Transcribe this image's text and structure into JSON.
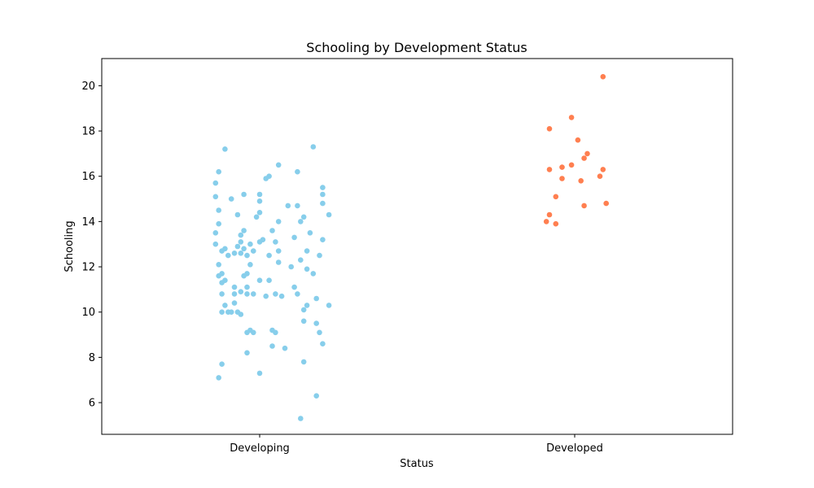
{
  "chart_data": {
    "type": "scatter",
    "title": "Schooling by Development Status",
    "xlabel": "Status",
    "ylabel": "Schooling",
    "categories": [
      "Developing",
      "Developed"
    ],
    "ylim": [
      4.6,
      21.2
    ],
    "yticks": [
      6,
      8,
      10,
      12,
      14,
      16,
      18,
      20
    ],
    "ytick_labels": [
      "6",
      "8",
      "10",
      "12",
      "14",
      "16",
      "18",
      "20"
    ],
    "grid": false,
    "legend": "none",
    "series": [
      {
        "category": "Developing",
        "color": "#87ceeb",
        "points": [
          {
            "x": -0.13,
            "y": 7.1
          },
          {
            "x": -0.12,
            "y": 7.7
          },
          {
            "x": -0.04,
            "y": 8.2
          },
          {
            "x": 0.04,
            "y": 8.5
          },
          {
            "x": 0.08,
            "y": 8.4
          },
          {
            "x": 0.14,
            "y": 7.8
          },
          {
            "x": 0.0,
            "y": 7.3
          },
          {
            "x": 0.18,
            "y": 6.3
          },
          {
            "x": 0.13,
            "y": 5.3
          },
          {
            "x": 0.2,
            "y": 8.6
          },
          {
            "x": 0.19,
            "y": 9.1
          },
          {
            "x": -0.04,
            "y": 9.1
          },
          {
            "x": -0.03,
            "y": 9.2
          },
          {
            "x": 0.05,
            "y": 9.1
          },
          {
            "x": 0.04,
            "y": 9.2
          },
          {
            "x": -0.02,
            "y": 9.1
          },
          {
            "x": 0.14,
            "y": 9.6
          },
          {
            "x": 0.18,
            "y": 9.5
          },
          {
            "x": -0.06,
            "y": 9.9
          },
          {
            "x": -0.07,
            "y": 10.0
          },
          {
            "x": -0.12,
            "y": 10.0
          },
          {
            "x": -0.09,
            "y": 10.0
          },
          {
            "x": -0.1,
            "y": 10.0
          },
          {
            "x": -0.11,
            "y": 10.3
          },
          {
            "x": -0.08,
            "y": 10.4
          },
          {
            "x": 0.14,
            "y": 10.1
          },
          {
            "x": 0.15,
            "y": 10.3
          },
          {
            "x": 0.22,
            "y": 10.3
          },
          {
            "x": 0.18,
            "y": 10.6
          },
          {
            "x": -0.12,
            "y": 10.8
          },
          {
            "x": -0.08,
            "y": 10.8
          },
          {
            "x": -0.04,
            "y": 10.8
          },
          {
            "x": -0.02,
            "y": 10.8
          },
          {
            "x": 0.02,
            "y": 10.7
          },
          {
            "x": 0.05,
            "y": 10.8
          },
          {
            "x": 0.07,
            "y": 10.7
          },
          {
            "x": 0.12,
            "y": 10.8
          },
          {
            "x": -0.08,
            "y": 11.1
          },
          {
            "x": -0.06,
            "y": 10.9
          },
          {
            "x": -0.04,
            "y": 11.1
          },
          {
            "x": 0.11,
            "y": 11.1
          },
          {
            "x": -0.12,
            "y": 11.3
          },
          {
            "x": -0.11,
            "y": 11.4
          },
          {
            "x": 0.0,
            "y": 11.4
          },
          {
            "x": 0.03,
            "y": 11.4
          },
          {
            "x": -0.13,
            "y": 11.6
          },
          {
            "x": -0.12,
            "y": 11.7
          },
          {
            "x": -0.05,
            "y": 11.6
          },
          {
            "x": -0.04,
            "y": 11.7
          },
          {
            "x": 0.17,
            "y": 11.7
          },
          {
            "x": 0.15,
            "y": 11.9
          },
          {
            "x": -0.13,
            "y": 12.1
          },
          {
            "x": -0.03,
            "y": 12.1
          },
          {
            "x": 0.06,
            "y": 12.2
          },
          {
            "x": 0.1,
            "y": 12.0
          },
          {
            "x": 0.13,
            "y": 12.3
          },
          {
            "x": -0.1,
            "y": 12.5
          },
          {
            "x": -0.08,
            "y": 12.6
          },
          {
            "x": -0.06,
            "y": 12.6
          },
          {
            "x": -0.04,
            "y": 12.5
          },
          {
            "x": 0.03,
            "y": 12.5
          },
          {
            "x": 0.06,
            "y": 12.7
          },
          {
            "x": 0.15,
            "y": 12.7
          },
          {
            "x": 0.19,
            "y": 12.5
          },
          {
            "x": -0.14,
            "y": 13.0
          },
          {
            "x": -0.12,
            "y": 12.7
          },
          {
            "x": -0.11,
            "y": 12.8
          },
          {
            "x": -0.07,
            "y": 12.9
          },
          {
            "x": -0.06,
            "y": 13.1
          },
          {
            "x": -0.05,
            "y": 12.8
          },
          {
            "x": -0.03,
            "y": 13.0
          },
          {
            "x": -0.02,
            "y": 12.7
          },
          {
            "x": 0.0,
            "y": 13.1
          },
          {
            "x": 0.01,
            "y": 13.2
          },
          {
            "x": 0.05,
            "y": 13.1
          },
          {
            "x": 0.2,
            "y": 13.2
          },
          {
            "x": -0.06,
            "y": 13.4
          },
          {
            "x": -0.05,
            "y": 13.6
          },
          {
            "x": 0.04,
            "y": 13.6
          },
          {
            "x": 0.11,
            "y": 13.3
          },
          {
            "x": 0.16,
            "y": 13.5
          },
          {
            "x": -0.14,
            "y": 13.5
          },
          {
            "x": -0.13,
            "y": 13.9
          },
          {
            "x": -0.01,
            "y": 14.2
          },
          {
            "x": 0.0,
            "y": 14.4
          },
          {
            "x": 0.06,
            "y": 14.0
          },
          {
            "x": 0.13,
            "y": 14.0
          },
          {
            "x": 0.14,
            "y": 14.2
          },
          {
            "x": -0.07,
            "y": 14.3
          },
          {
            "x": 0.22,
            "y": 14.3
          },
          {
            "x": -0.13,
            "y": 14.5
          },
          {
            "x": 0.09,
            "y": 14.7
          },
          {
            "x": 0.12,
            "y": 14.7
          },
          {
            "x": 0.2,
            "y": 14.8
          },
          {
            "x": -0.09,
            "y": 15.0
          },
          {
            "x": -0.14,
            "y": 15.1
          },
          {
            "x": 0.0,
            "y": 14.9
          },
          {
            "x": -0.05,
            "y": 15.2
          },
          {
            "x": 0.0,
            "y": 15.2
          },
          {
            "x": 0.2,
            "y": 15.2
          },
          {
            "x": 0.2,
            "y": 15.5
          },
          {
            "x": -0.14,
            "y": 15.7
          },
          {
            "x": 0.02,
            "y": 15.9
          },
          {
            "x": 0.03,
            "y": 16.0
          },
          {
            "x": -0.13,
            "y": 16.2
          },
          {
            "x": 0.12,
            "y": 16.2
          },
          {
            "x": 0.06,
            "y": 16.5
          },
          {
            "x": -0.11,
            "y": 17.2
          },
          {
            "x": 0.17,
            "y": 17.3
          }
        ]
      },
      {
        "category": "Developed",
        "color": "#ff7f50",
        "points": [
          {
            "x": -0.09,
            "y": 14.0
          },
          {
            "x": -0.06,
            "y": 13.9
          },
          {
            "x": -0.08,
            "y": 14.3
          },
          {
            "x": 0.03,
            "y": 14.7
          },
          {
            "x": 0.1,
            "y": 14.8
          },
          {
            "x": -0.06,
            "y": 15.1
          },
          {
            "x": 0.02,
            "y": 15.8
          },
          {
            "x": -0.04,
            "y": 15.9
          },
          {
            "x": 0.08,
            "y": 16.0
          },
          {
            "x": 0.09,
            "y": 16.3
          },
          {
            "x": -0.08,
            "y": 16.3
          },
          {
            "x": -0.04,
            "y": 16.4
          },
          {
            "x": -0.01,
            "y": 16.5
          },
          {
            "x": 0.03,
            "y": 16.8
          },
          {
            "x": 0.04,
            "y": 17.0
          },
          {
            "x": 0.01,
            "y": 17.6
          },
          {
            "x": -0.08,
            "y": 18.1
          },
          {
            "x": -0.01,
            "y": 18.6
          },
          {
            "x": 0.09,
            "y": 20.4
          }
        ]
      }
    ]
  }
}
